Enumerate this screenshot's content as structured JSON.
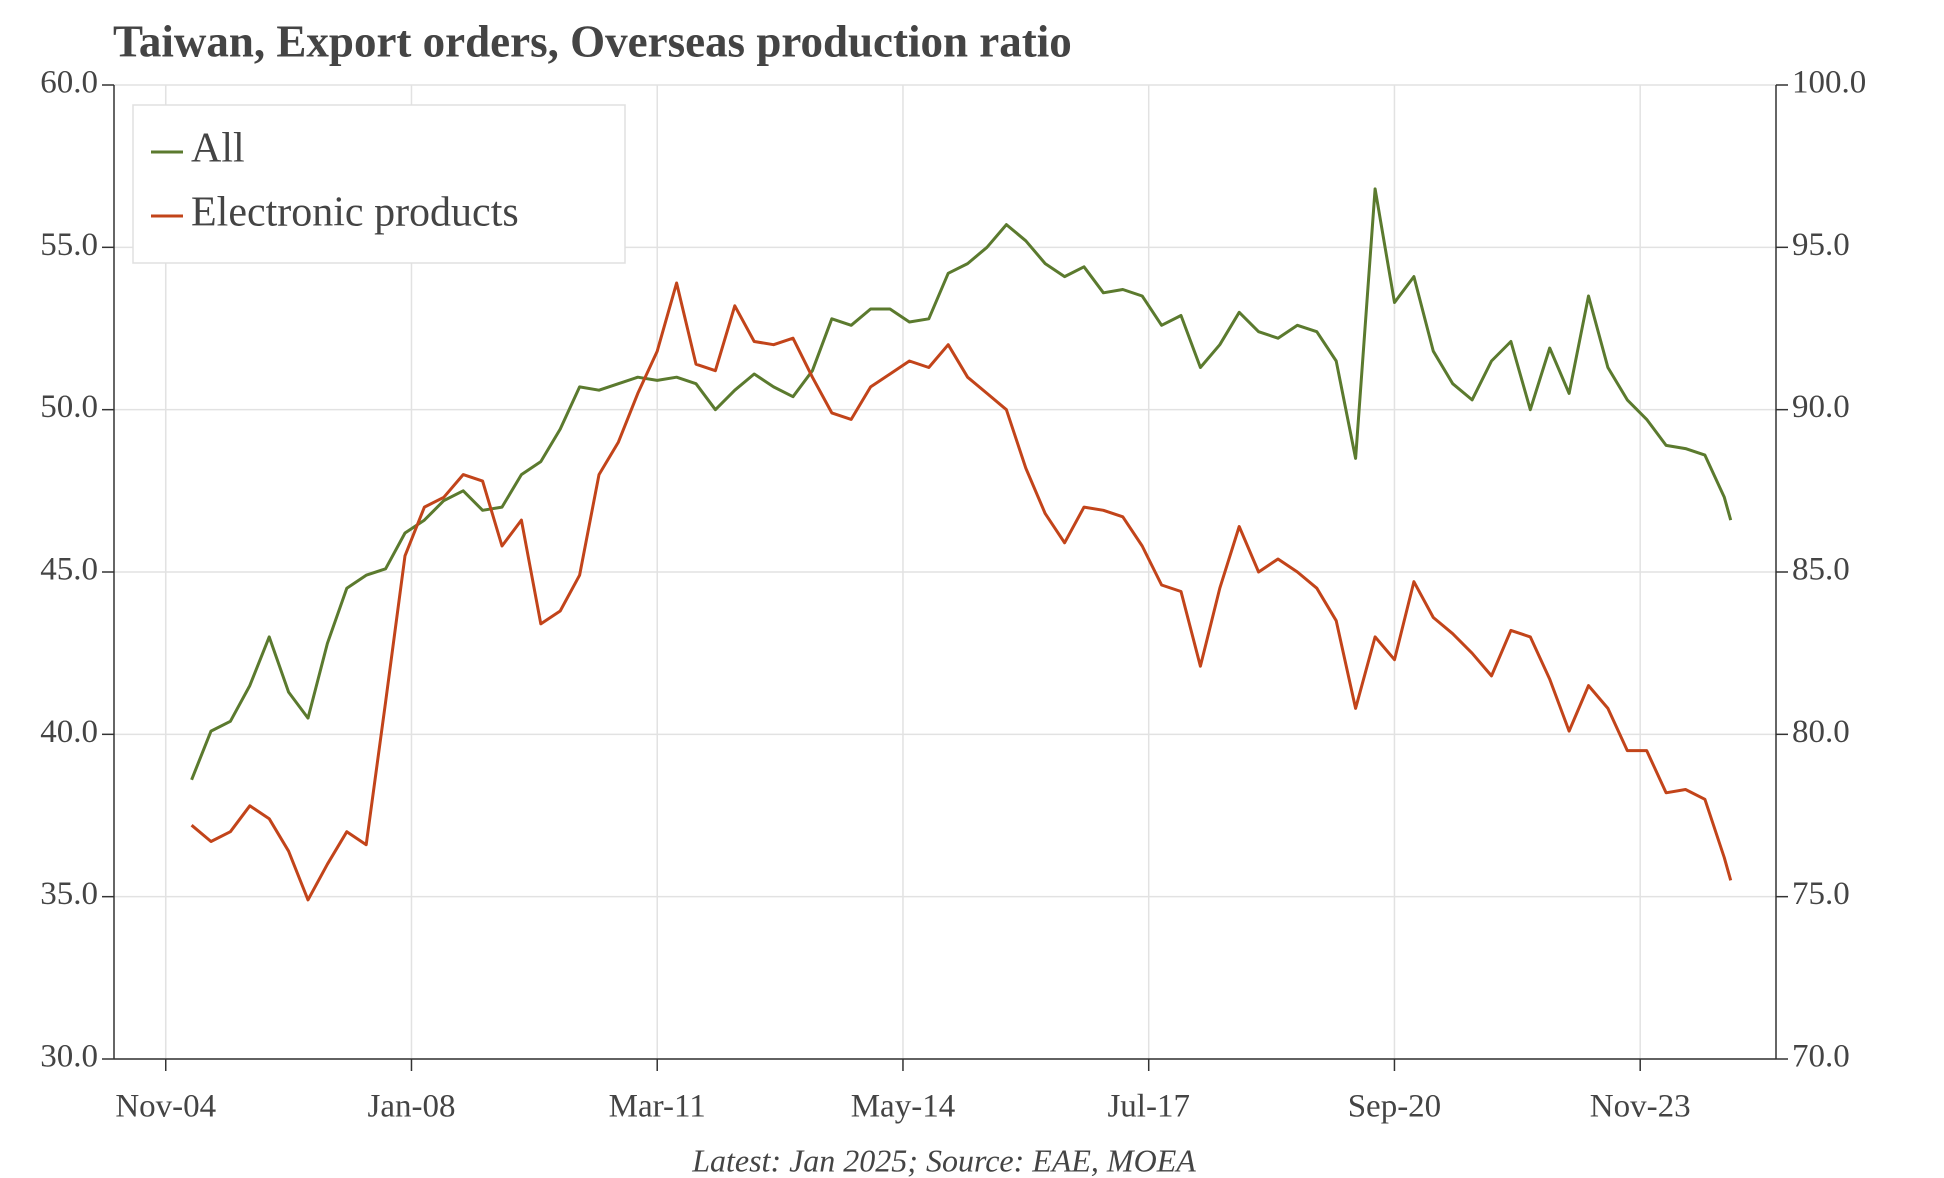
{
  "chart_data": {
    "type": "line",
    "title": "Taiwan, Export orders, Overseas production ratio",
    "footnote": "Latest: Jan 2025; Source: EAE, MOEA",
    "x": [
      "2005-03",
      "2005-06",
      "2005-09",
      "2005-12",
      "2006-03",
      "2006-06",
      "2006-09",
      "2006-12",
      "2007-03",
      "2007-06",
      "2007-09",
      "2007-12",
      "2008-03",
      "2008-06",
      "2008-09",
      "2008-12",
      "2009-03",
      "2009-06",
      "2009-09",
      "2009-12",
      "2010-03",
      "2010-06",
      "2010-09",
      "2010-12",
      "2011-03",
      "2011-06",
      "2011-09",
      "2011-12",
      "2012-03",
      "2012-06",
      "2012-09",
      "2012-12",
      "2013-03",
      "2013-06",
      "2013-09",
      "2013-12",
      "2014-03",
      "2014-06",
      "2014-09",
      "2014-12",
      "2015-03",
      "2015-06",
      "2015-09",
      "2015-12",
      "2016-03",
      "2016-06",
      "2016-09",
      "2016-12",
      "2017-03",
      "2017-06",
      "2017-09",
      "2017-12",
      "2018-03",
      "2018-06",
      "2018-09",
      "2018-12",
      "2019-03",
      "2019-06",
      "2019-09",
      "2019-12",
      "2020-03",
      "2020-06",
      "2020-09",
      "2020-12",
      "2021-03",
      "2021-06",
      "2021-09",
      "2021-12",
      "2022-03",
      "2022-06",
      "2022-09",
      "2022-12",
      "2023-03",
      "2023-06",
      "2023-09",
      "2023-12",
      "2024-03",
      "2024-06",
      "2024-09",
      "2024-12",
      "2025-01"
    ],
    "series": [
      {
        "name": "All",
        "color": "#5b7a2e",
        "axis": "y",
        "values": [
          38.6,
          40.1,
          40.4,
          41.5,
          43.0,
          41.3,
          40.5,
          42.8,
          44.5,
          44.9,
          45.1,
          46.2,
          46.6,
          47.2,
          47.5,
          46.9,
          47.0,
          48.0,
          48.4,
          49.4,
          50.7,
          50.6,
          50.8,
          51.0,
          50.9,
          51.0,
          50.8,
          50.0,
          50.6,
          51.1,
          50.7,
          50.4,
          51.2,
          52.8,
          52.6,
          53.1,
          53.1,
          52.7,
          52.8,
          54.2,
          54.5,
          55.0,
          55.7,
          55.2,
          54.5,
          54.1,
          54.4,
          53.6,
          53.7,
          53.5,
          52.6,
          52.9,
          51.3,
          52.0,
          53.0,
          52.4,
          52.2,
          52.6,
          52.4,
          51.5,
          48.5,
          56.8,
          53.3,
          54.1,
          51.8,
          50.8,
          50.3,
          51.5,
          52.1,
          50.0,
          51.9,
          50.5,
          53.5,
          51.3,
          50.3,
          49.7,
          48.9,
          48.8,
          48.6,
          47.3,
          46.6
        ]
      },
      {
        "name": "Electronic products",
        "color": "#c2441a",
        "axis": "y2",
        "values": [
          77.2,
          76.7,
          77.0,
          77.8,
          77.4,
          76.4,
          74.9,
          76.0,
          77.0,
          76.6,
          81.0,
          85.5,
          87.0,
          87.3,
          88.0,
          87.8,
          85.8,
          86.6,
          83.4,
          83.8,
          84.9,
          88.0,
          89.0,
          90.5,
          91.8,
          93.9,
          91.4,
          91.2,
          93.2,
          92.1,
          92.0,
          92.2,
          91.0,
          89.9,
          89.7,
          90.7,
          91.1,
          91.5,
          91.3,
          92.0,
          91.0,
          90.5,
          90.0,
          88.2,
          86.8,
          85.9,
          87.0,
          86.9,
          86.7,
          85.8,
          84.6,
          84.4,
          82.1,
          84.5,
          86.4,
          85.0,
          85.4,
          85.0,
          84.5,
          83.5,
          80.8,
          83.0,
          82.3,
          84.7,
          83.6,
          83.1,
          82.5,
          81.8,
          83.2,
          83.0,
          81.7,
          80.1,
          81.5,
          80.8,
          79.5,
          79.5,
          78.2,
          78.3,
          78.0,
          76.2,
          75.5
        ]
      }
    ],
    "xlim": [
      "2004-03",
      "2025-08"
    ],
    "xticks": [
      {
        "value": "2004-11",
        "label": "Nov-04"
      },
      {
        "value": "2008-01",
        "label": "Jan-08"
      },
      {
        "value": "2011-03",
        "label": "Mar-11"
      },
      {
        "value": "2014-05",
        "label": "May-14"
      },
      {
        "value": "2017-07",
        "label": "Jul-17"
      },
      {
        "value": "2020-09",
        "label": "Sep-20"
      },
      {
        "value": "2023-11",
        "label": "Nov-23"
      }
    ],
    "ylim": [
      30,
      60
    ],
    "yticks": [
      {
        "value": 30,
        "label": "30.0"
      },
      {
        "value": 35,
        "label": "35.0"
      },
      {
        "value": 40,
        "label": "40.0"
      },
      {
        "value": 45,
        "label": "45.0"
      },
      {
        "value": 50,
        "label": "50.0"
      },
      {
        "value": 55,
        "label": "55.0"
      },
      {
        "value": 60,
        "label": "60.0"
      }
    ],
    "y2lim": [
      70,
      100
    ],
    "y2ticks": [
      {
        "value": 70,
        "label": "70.0"
      },
      {
        "value": 75,
        "label": "75.0"
      },
      {
        "value": 80,
        "label": "80.0"
      },
      {
        "value": 85,
        "label": "85.0"
      },
      {
        "value": 90,
        "label": "90.0"
      },
      {
        "value": 95,
        "label": "95.0"
      },
      {
        "value": 100,
        "label": "100.0"
      }
    ],
    "grid": true,
    "legend": "upper left"
  }
}
